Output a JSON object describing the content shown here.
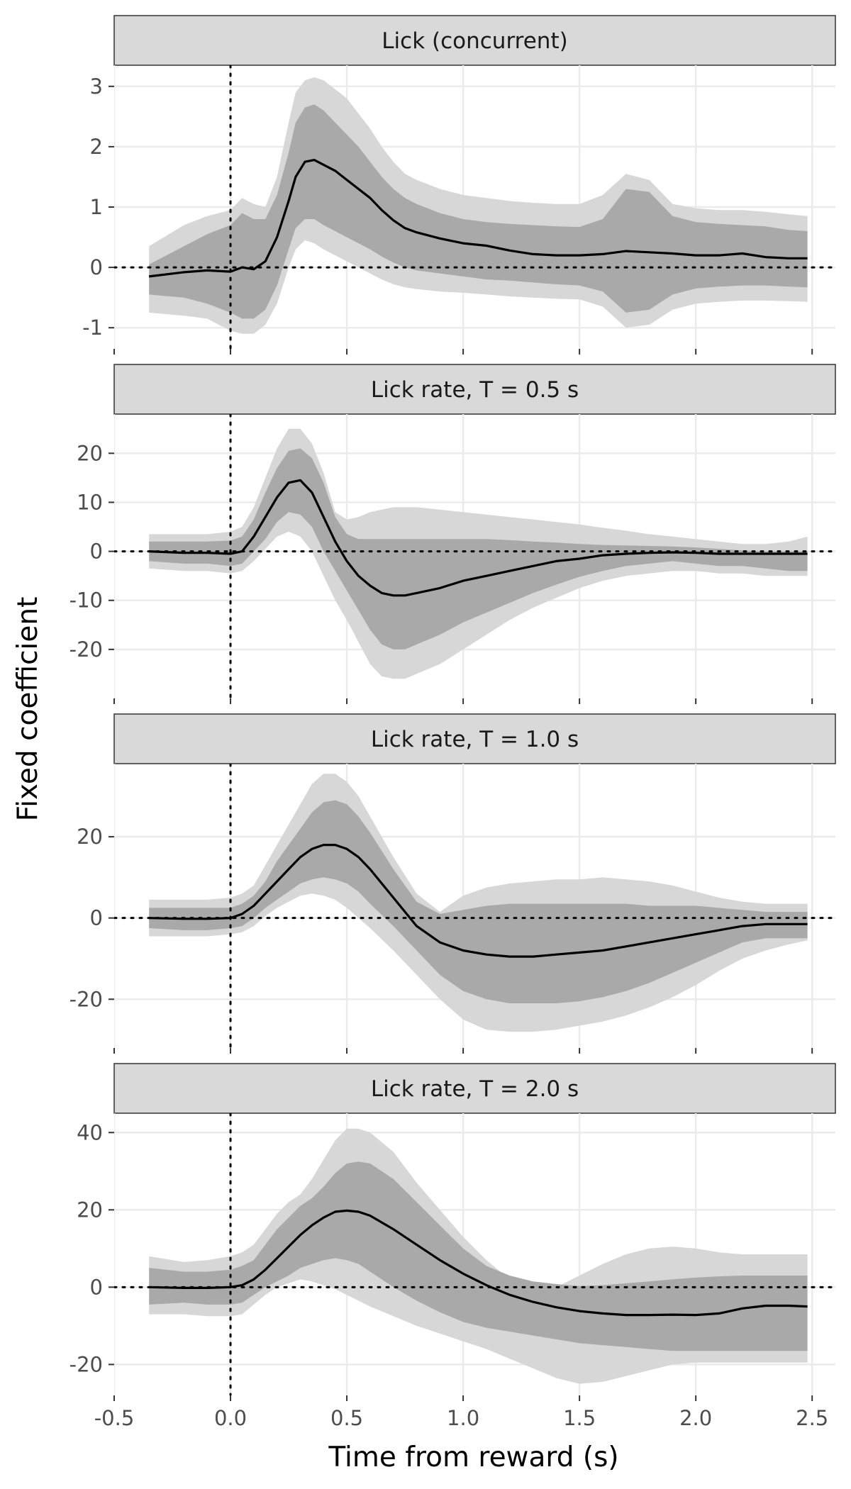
{
  "chart_data": {
    "type": "line",
    "xlabel": "Time from reward (s)",
    "ylabel": "Fixed coefficient",
    "x_ticks": [
      -0.5,
      0.0,
      0.5,
      1.0,
      1.5,
      2.0,
      2.5
    ],
    "x_tick_labels": [
      "-0.5",
      "0.0",
      "0.5",
      "1.0",
      "1.5",
      "2.0",
      "2.5"
    ],
    "xlim": [
      -0.5,
      2.6
    ],
    "grid": true,
    "reference_lines": {
      "x": 0,
      "y": 0,
      "style": "dotted"
    },
    "colors": {
      "line": "#000000",
      "inner_band": "#a9a9a9",
      "outer_band": "#d7d7d7",
      "strip": "#d9d9d9",
      "grid": "#ebebeb"
    },
    "panels": [
      {
        "title": "Lick (concurrent)",
        "ylim": [
          -1.35,
          3.35
        ],
        "y_ticks": [
          -1,
          0,
          1,
          2,
          3
        ],
        "y_tick_labels": [
          "-1",
          "0",
          "1",
          "2",
          "3"
        ],
        "x": [
          -0.35,
          -0.2,
          -0.1,
          0.0,
          0.05,
          0.1,
          0.15,
          0.2,
          0.25,
          0.28,
          0.32,
          0.36,
          0.4,
          0.45,
          0.5,
          0.55,
          0.6,
          0.65,
          0.7,
          0.75,
          0.8,
          0.9,
          1.0,
          1.1,
          1.2,
          1.3,
          1.4,
          1.5,
          1.6,
          1.7,
          1.8,
          1.9,
          2.0,
          2.1,
          2.2,
          2.3,
          2.4,
          2.48
        ],
        "y": [
          -0.15,
          -0.08,
          -0.05,
          -0.07,
          0.0,
          -0.03,
          0.1,
          0.5,
          1.1,
          1.5,
          1.75,
          1.78,
          1.7,
          1.6,
          1.45,
          1.3,
          1.15,
          0.95,
          0.78,
          0.65,
          0.58,
          0.48,
          0.4,
          0.36,
          0.28,
          0.22,
          0.2,
          0.2,
          0.22,
          0.27,
          0.25,
          0.23,
          0.2,
          0.2,
          0.23,
          0.17,
          0.15,
          0.15
        ],
        "inner_upper": [
          0.05,
          0.35,
          0.55,
          0.7,
          0.9,
          0.8,
          0.8,
          1.2,
          1.9,
          2.4,
          2.65,
          2.7,
          2.6,
          2.4,
          2.2,
          2.0,
          1.75,
          1.5,
          1.3,
          1.15,
          1.05,
          0.9,
          0.8,
          0.75,
          0.72,
          0.7,
          0.68,
          0.67,
          0.8,
          1.3,
          1.25,
          0.85,
          0.75,
          0.72,
          0.7,
          0.68,
          0.62,
          0.6
        ],
        "inner_lower": [
          -0.45,
          -0.5,
          -0.6,
          -0.75,
          -0.85,
          -0.85,
          -0.7,
          -0.3,
          0.3,
          0.65,
          0.8,
          0.8,
          0.7,
          0.6,
          0.5,
          0.4,
          0.3,
          0.18,
          0.08,
          0.0,
          -0.05,
          -0.1,
          -0.15,
          -0.2,
          -0.22,
          -0.25,
          -0.28,
          -0.3,
          -0.4,
          -0.75,
          -0.7,
          -0.45,
          -0.35,
          -0.32,
          -0.3,
          -0.3,
          -0.32,
          -0.33
        ],
        "outer_upper": [
          0.35,
          0.7,
          0.85,
          0.95,
          1.15,
          1.05,
          1.0,
          1.5,
          2.4,
          2.9,
          3.1,
          3.15,
          3.1,
          2.95,
          2.8,
          2.55,
          2.3,
          2.0,
          1.75,
          1.55,
          1.45,
          1.3,
          1.2,
          1.15,
          1.1,
          1.07,
          1.05,
          1.05,
          1.2,
          1.55,
          1.45,
          1.05,
          0.98,
          0.95,
          0.95,
          0.92,
          0.88,
          0.85
        ],
        "outer_lower": [
          -0.75,
          -0.8,
          -0.85,
          -1.05,
          -1.1,
          -1.1,
          -0.95,
          -0.6,
          0.0,
          0.3,
          0.45,
          0.4,
          0.3,
          0.2,
          0.1,
          0.0,
          -0.1,
          -0.2,
          -0.28,
          -0.33,
          -0.36,
          -0.4,
          -0.42,
          -0.45,
          -0.48,
          -0.5,
          -0.52,
          -0.53,
          -0.65,
          -1.0,
          -0.95,
          -0.7,
          -0.6,
          -0.57,
          -0.55,
          -0.55,
          -0.56,
          -0.57
        ]
      },
      {
        "title": "Lick rate, T = 0.5 s",
        "ylim": [
          -30,
          28
        ],
        "y_ticks": [
          -20,
          -10,
          0,
          10,
          20
        ],
        "y_tick_labels": [
          "-20",
          "-10",
          "0",
          "10",
          "20"
        ],
        "x": [
          -0.35,
          -0.2,
          -0.1,
          0.0,
          0.05,
          0.1,
          0.15,
          0.2,
          0.25,
          0.3,
          0.35,
          0.4,
          0.45,
          0.5,
          0.55,
          0.6,
          0.65,
          0.7,
          0.75,
          0.8,
          0.9,
          1.0,
          1.1,
          1.2,
          1.3,
          1.4,
          1.5,
          1.6,
          1.7,
          1.8,
          1.9,
          2.0,
          2.1,
          2.2,
          2.3,
          2.4,
          2.48
        ],
        "y": [
          0,
          -0.3,
          -0.3,
          -0.5,
          0,
          3,
          7,
          11,
          14,
          14.5,
          12,
          7,
          2,
          -2,
          -5,
          -7,
          -8.5,
          -9,
          -9,
          -8.5,
          -7.5,
          -6,
          -5,
          -4,
          -3,
          -2,
          -1.5,
          -0.8,
          -0.5,
          -0.3,
          -0.2,
          -0.3,
          -0.5,
          -0.5,
          -0.5,
          -0.5,
          -0.5
        ],
        "inner_upper": [
          2,
          2,
          2,
          2.2,
          3,
          6.5,
          12,
          17,
          20.5,
          21,
          19,
          14,
          7,
          3.5,
          2.5,
          2.5,
          2.5,
          2.5,
          2.5,
          2.5,
          2.5,
          2.5,
          2.5,
          2.3,
          2,
          1.8,
          1.5,
          1.3,
          1.2,
          1.1,
          1,
          0.8,
          0.5,
          0.2,
          0,
          0,
          0
        ],
        "inner_lower": [
          -2,
          -2.5,
          -2.5,
          -3,
          -2.5,
          0,
          2.5,
          6,
          8,
          7.5,
          5,
          0,
          -4,
          -8,
          -12,
          -16,
          -19,
          -20,
          -20,
          -19,
          -17,
          -14.5,
          -12.5,
          -10.5,
          -8.5,
          -6.8,
          -5.2,
          -4,
          -3,
          -2.5,
          -2,
          -2.5,
          -3,
          -3,
          -3.5,
          -4,
          -4
        ],
        "outer_upper": [
          3.5,
          3.5,
          3.5,
          4,
          5,
          9,
          15,
          21,
          25,
          25,
          22,
          16,
          8,
          6.5,
          7,
          8,
          8.5,
          9,
          9,
          9,
          8.5,
          8,
          7.5,
          7,
          6.5,
          6,
          5.5,
          4.8,
          4.2,
          3.5,
          3,
          2.5,
          2,
          1.5,
          1.5,
          2,
          3
        ],
        "outer_lower": [
          -3.5,
          -4,
          -4,
          -4.5,
          -4,
          -2,
          0.5,
          3,
          4,
          3,
          0,
          -5,
          -10,
          -14,
          -18.5,
          -23,
          -25.5,
          -26,
          -26,
          -25,
          -23,
          -20,
          -17,
          -14,
          -11.5,
          -9.5,
          -7.5,
          -6,
          -5,
          -4.5,
          -4,
          -4,
          -4.5,
          -4.5,
          -5,
          -5,
          -5
        ]
      },
      {
        "title": "Lick rate, T = 1.0 s",
        "ylim": [
          -32,
          38
        ],
        "y_ticks": [
          -20,
          0,
          20
        ],
        "y_tick_labels": [
          "-20",
          "0",
          "20"
        ],
        "x": [
          -0.35,
          -0.2,
          -0.1,
          0.0,
          0.05,
          0.1,
          0.15,
          0.2,
          0.25,
          0.3,
          0.35,
          0.4,
          0.45,
          0.5,
          0.55,
          0.6,
          0.7,
          0.8,
          0.9,
          1.0,
          1.1,
          1.2,
          1.3,
          1.4,
          1.5,
          1.6,
          1.7,
          1.8,
          1.9,
          2.0,
          2.1,
          2.2,
          2.3,
          2.4,
          2.48
        ],
        "y": [
          0,
          -0.2,
          -0.2,
          0,
          1,
          3,
          6,
          9,
          12,
          15,
          17,
          18,
          18,
          17,
          15,
          12,
          5,
          -2,
          -6,
          -8,
          -9,
          -9.5,
          -9.5,
          -9,
          -8.5,
          -8,
          -7,
          -6,
          -5,
          -4,
          -3,
          -2,
          -1.5,
          -1.5,
          -1.5
        ],
        "inner_upper": [
          2.5,
          2.5,
          2.5,
          2.5,
          3.5,
          5.5,
          9,
          14,
          18,
          22,
          26,
          28.5,
          29,
          28,
          25,
          21,
          12,
          4,
          1,
          2,
          3,
          3.5,
          3.5,
          3.5,
          3.5,
          3.5,
          3.5,
          3,
          3,
          3,
          2.5,
          2,
          1.5,
          1.5,
          1.5
        ],
        "inner_lower": [
          -2.5,
          -3,
          -3,
          -2.5,
          -2,
          0,
          2.5,
          4.5,
          6.5,
          8.5,
          9.5,
          10,
          9.5,
          8.5,
          6.5,
          3.5,
          -2,
          -8,
          -14,
          -18,
          -20,
          -21,
          -21,
          -21,
          -20.5,
          -19.5,
          -18,
          -16,
          -13.5,
          -11,
          -8.5,
          -6,
          -5,
          -5,
          -5
        ],
        "outer_upper": [
          4.5,
          4.5,
          4.5,
          5,
          6,
          8,
          13,
          18,
          23,
          28,
          33,
          35.5,
          35.5,
          33.5,
          30,
          25,
          15,
          6,
          1.5,
          5.5,
          7.5,
          8.5,
          9,
          9.5,
          9.5,
          10,
          9.5,
          9,
          8,
          6.5,
          5,
          4,
          3.5,
          3.5,
          3.5
        ],
        "outer_lower": [
          -4.5,
          -4.5,
          -4.5,
          -4,
          -3.5,
          -2,
          0.5,
          2.5,
          4,
          5.5,
          6,
          5.5,
          4.5,
          2.5,
          0,
          -2.5,
          -8,
          -14,
          -20,
          -25,
          -27.5,
          -28,
          -28,
          -27.5,
          -26.5,
          -25.5,
          -24,
          -22,
          -19.5,
          -16.5,
          -13,
          -10,
          -8,
          -6.5,
          -5.5
        ]
      },
      {
        "title": "Lick rate, T = 2.0 s",
        "ylim": [
          -28,
          45
        ],
        "y_ticks": [
          -20,
          0,
          20,
          40
        ],
        "y_tick_labels": [
          "-20",
          "0",
          "20",
          "40"
        ],
        "x": [
          -0.35,
          -0.2,
          -0.1,
          0.0,
          0.05,
          0.1,
          0.15,
          0.2,
          0.25,
          0.3,
          0.35,
          0.4,
          0.45,
          0.5,
          0.55,
          0.6,
          0.7,
          0.8,
          0.9,
          1.0,
          1.1,
          1.2,
          1.3,
          1.4,
          1.5,
          1.6,
          1.7,
          1.8,
          1.9,
          2.0,
          2.1,
          2.2,
          2.3,
          2.4,
          2.48
        ],
        "y": [
          0,
          -0.2,
          -0.2,
          0,
          0.5,
          2,
          4.5,
          7.5,
          10.5,
          13.5,
          16,
          18,
          19.5,
          19.8,
          19.5,
          18.5,
          15,
          11,
          7,
          3.5,
          0.5,
          -2,
          -3.8,
          -5.2,
          -6.2,
          -6.8,
          -7.2,
          -7.2,
          -7.1,
          -7.2,
          -6.8,
          -5.5,
          -4.8,
          -4.8,
          -5
        ],
        "inner_upper": [
          5,
          4,
          4,
          4.5,
          5.5,
          7,
          11,
          15,
          18,
          21,
          23,
          26,
          29.5,
          32,
          32.5,
          32,
          28,
          22,
          16,
          10,
          5.5,
          3,
          1.5,
          0.8,
          0.3,
          0.5,
          1,
          1.5,
          2,
          2.5,
          2.8,
          3,
          3,
          3,
          3
        ],
        "inner_lower": [
          -4.5,
          -4,
          -4.5,
          -4.5,
          -4,
          -2,
          0,
          1.5,
          3,
          5,
          6,
          7,
          7.5,
          7,
          6,
          4,
          0,
          -3.5,
          -6.5,
          -9,
          -10.5,
          -11.5,
          -12.5,
          -13.5,
          -14.5,
          -15,
          -15.5,
          -16,
          -16.5,
          -16.5,
          -16.5,
          -16.5,
          -16.5,
          -16.5,
          -16.5
        ],
        "outer_upper": [
          8,
          6.5,
          7,
          8,
          9,
          11,
          15,
          19,
          22,
          24,
          28,
          33,
          38,
          41,
          41,
          40,
          35,
          27,
          20,
          13,
          7,
          2,
          -1,
          0,
          3,
          6,
          8.5,
          10,
          10.5,
          10,
          9,
          8.5,
          8.5,
          8.5,
          8.5
        ],
        "outer_lower": [
          -7,
          -7,
          -7.5,
          -7.5,
          -7,
          -4.5,
          -2,
          0,
          1,
          2,
          1.5,
          0.5,
          -0.5,
          -2,
          -3.5,
          -5,
          -7.5,
          -10,
          -12,
          -14,
          -16,
          -18.5,
          -21,
          -23.5,
          -25,
          -24.5,
          -23,
          -21.5,
          -20,
          -19.5,
          -19.5,
          -19.5,
          -19.5,
          -19.5,
          -19.5
        ]
      }
    ]
  }
}
